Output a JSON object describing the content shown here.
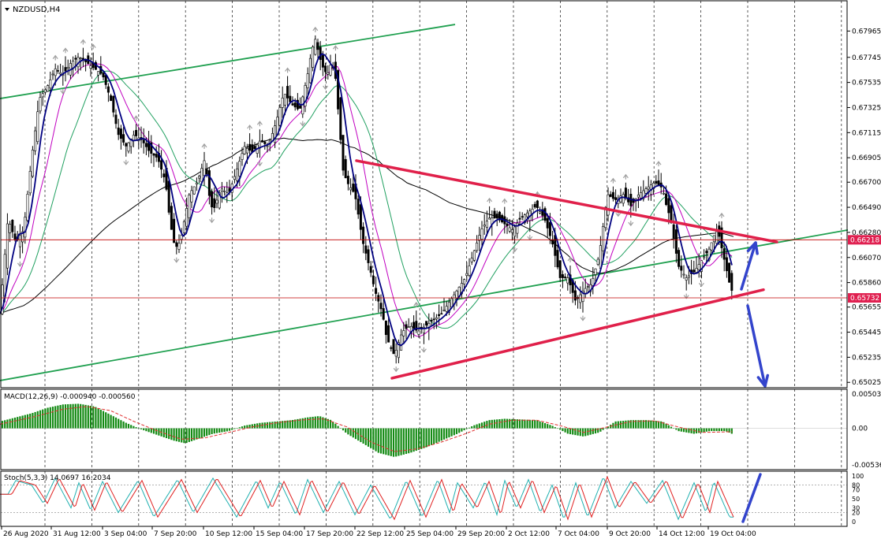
{
  "symbol_title": "NZDUSD,H4",
  "colors": {
    "background": "#ffffff",
    "grid": "#000000",
    "candle": "#000000",
    "ma_fast": "#000080",
    "ma_mid": "#c000c0",
    "ma_slow": "#20a060",
    "ma_long": "#000000",
    "channel": "#20a050",
    "triangle": "#e0204a",
    "level_line": "#c00000",
    "level_label_bg": "#e02050",
    "arrow": "#3344cc",
    "histogram": "#138a13",
    "macd_signal": "#e03030",
    "stoch_main": "#20b0b0",
    "stoch_signal": "#e02020",
    "fractal": "#a0a0a0"
  },
  "chart_data": [
    {
      "type": "candlestick",
      "name": "main",
      "price_ticks": [
        "0.67965",
        "0.67745",
        "0.67535",
        "0.67325",
        "0.67115",
        "0.66905",
        "0.66700",
        "0.66490",
        "0.66280",
        "0.66070",
        "0.65860",
        "0.65655",
        "0.65445",
        "0.65235",
        "0.65025"
      ],
      "ylim": [
        0.6502,
        0.6806
      ],
      "x_labels": [
        "26 Aug 2020",
        "31 Aug 12:00",
        "3 Sep 04:00",
        "7 Sep 20:00",
        "10 Sep 12:00",
        "15 Sep 04:00",
        "17 Sep 20:00",
        "22 Sep 12:00",
        "25 Sep 04:00",
        "29 Sep 20:00",
        "2 Oct 12:00",
        "7 Oct 04:00",
        "9 Oct 20:00",
        "14 Oct 12:00",
        "19 Oct 04:00"
      ],
      "price_path": [
        [
          0,
          0.656
        ],
        [
          10,
          0.664
        ],
        [
          20,
          0.662
        ],
        [
          30,
          0.663
        ],
        [
          40,
          0.669
        ],
        [
          50,
          0.674
        ],
        [
          60,
          0.675
        ],
        [
          70,
          0.6765
        ],
        [
          80,
          0.676
        ],
        [
          90,
          0.677
        ],
        [
          100,
          0.6775
        ],
        [
          110,
          0.677
        ],
        [
          120,
          0.6765
        ],
        [
          130,
          0.676
        ],
        [
          140,
          0.674
        ],
        [
          150,
          0.671
        ],
        [
          160,
          0.67
        ],
        [
          170,
          0.671
        ],
        [
          180,
          0.6705
        ],
        [
          190,
          0.6695
        ],
        [
          200,
          0.669
        ],
        [
          210,
          0.667
        ],
        [
          215,
          0.664
        ],
        [
          220,
          0.662
        ],
        [
          225,
          0.6615
        ],
        [
          230,
          0.6625
        ],
        [
          240,
          0.666
        ],
        [
          250,
          0.667
        ],
        [
          260,
          0.669
        ],
        [
          265,
          0.666
        ],
        [
          270,
          0.6645
        ],
        [
          280,
          0.6665
        ],
        [
          290,
          0.666
        ],
        [
          300,
          0.668
        ],
        [
          310,
          0.67
        ],
        [
          320,
          0.6695
        ],
        [
          330,
          0.6705
        ],
        [
          340,
          0.67
        ],
        [
          350,
          0.672
        ],
        [
          360,
          0.6745
        ],
        [
          370,
          0.6735
        ],
        [
          380,
          0.673
        ],
        [
          390,
          0.676
        ],
        [
          395,
          0.678
        ],
        [
          400,
          0.679
        ],
        [
          405,
          0.6775
        ],
        [
          410,
          0.6765
        ],
        [
          415,
          0.676
        ],
        [
          420,
          0.677
        ],
        [
          425,
          0.676
        ],
        [
          430,
          0.672
        ],
        [
          435,
          0.668
        ],
        [
          440,
          0.667
        ],
        [
          450,
          0.666
        ],
        [
          460,
          0.662
        ],
        [
          470,
          0.6595
        ],
        [
          475,
          0.658
        ],
        [
          480,
          0.657
        ],
        [
          485,
          0.656
        ],
        [
          490,
          0.654
        ],
        [
          500,
          0.6525
        ],
        [
          510,
          0.6545
        ],
        [
          520,
          0.655
        ],
        [
          530,
          0.6545
        ],
        [
          540,
          0.655
        ],
        [
          550,
          0.6555
        ],
        [
          560,
          0.656
        ],
        [
          570,
          0.657
        ],
        [
          580,
          0.658
        ],
        [
          590,
          0.659
        ],
        [
          600,
          0.661
        ],
        [
          610,
          0.663
        ],
        [
          620,
          0.664
        ],
        [
          630,
          0.664
        ],
        [
          640,
          0.6635
        ],
        [
          650,
          0.663
        ],
        [
          660,
          0.664
        ],
        [
          670,
          0.6645
        ],
        [
          680,
          0.665
        ],
        [
          690,
          0.664
        ],
        [
          700,
          0.662
        ],
        [
          710,
          0.659
        ],
        [
          720,
          0.659
        ],
        [
          730,
          0.657
        ],
        [
          740,
          0.658
        ],
        [
          750,
          0.6585
        ],
        [
          760,
          0.661
        ],
        [
          770,
          0.666
        ],
        [
          780,
          0.6655
        ],
        [
          790,
          0.666
        ],
        [
          800,
          0.665
        ],
        [
          810,
          0.666
        ],
        [
          820,
          0.6665
        ],
        [
          830,
          0.667
        ],
        [
          840,
          0.6665
        ],
        [
          845,
          0.665
        ],
        [
          850,
          0.664
        ],
        [
          855,
          0.662
        ],
        [
          860,
          0.66
        ],
        [
          870,
          0.659
        ],
        [
          880,
          0.6595
        ],
        [
          890,
          0.6605
        ],
        [
          900,
          0.6615
        ],
        [
          905,
          0.6625
        ],
        [
          910,
          0.663
        ],
        [
          915,
          0.6615
        ],
        [
          920,
          0.66
        ],
        [
          925,
          0.6585
        ],
        [
          930,
          0.6575
        ]
      ],
      "level_lines": [
        {
          "price": 0.66218,
          "label": "0.66218"
        },
        {
          "price": 0.65732,
          "label": "0.65732"
        }
      ],
      "channel_lines": [
        {
          "name": "upper",
          "points": [
            [
              0,
              0.674
            ],
            [
              577,
              0.6802
            ]
          ]
        },
        {
          "name": "lower",
          "points": [
            [
              0,
              0.6504
            ],
            [
              1075,
              0.663
            ]
          ]
        }
      ],
      "triangle_lines": [
        {
          "name": "resistance",
          "points": [
            [
              452,
              0.6688
            ],
            [
              985,
              0.662
            ]
          ]
        },
        {
          "name": "support",
          "points": [
            [
              497,
              0.6506
            ],
            [
              968,
              0.658
            ]
          ]
        }
      ]
    },
    {
      "type": "bar",
      "name": "macd",
      "title": "MACD(12,26,9) -0.000940 -0.000560",
      "y_ticks": [
        "0.005032",
        "0.00",
        "-0.005364"
      ],
      "ylim": [
        -0.00536,
        0.00503
      ],
      "histogram": [
        [
          0,
          0.001
        ],
        [
          20,
          0.0016
        ],
        [
          40,
          0.0022
        ],
        [
          60,
          0.003
        ],
        [
          80,
          0.0035
        ],
        [
          100,
          0.0036
        ],
        [
          120,
          0.0032
        ],
        [
          140,
          0.002
        ],
        [
          160,
          0.0008
        ],
        [
          180,
          -0.0002
        ],
        [
          200,
          -0.001
        ],
        [
          220,
          -0.0018
        ],
        [
          235,
          -0.0022
        ],
        [
          250,
          -0.0016
        ],
        [
          270,
          -0.0008
        ],
        [
          290,
          -0.0004
        ],
        [
          310,
          0.0004
        ],
        [
          330,
          0.0008
        ],
        [
          350,
          0.001
        ],
        [
          370,
          0.0012
        ],
        [
          390,
          0.0016
        ],
        [
          405,
          0.0018
        ],
        [
          420,
          0.0012
        ],
        [
          440,
          -0.0008
        ],
        [
          460,
          -0.0022
        ],
        [
          480,
          -0.0036
        ],
        [
          500,
          -0.0042
        ],
        [
          520,
          -0.0036
        ],
        [
          540,
          -0.0028
        ],
        [
          560,
          -0.0018
        ],
        [
          580,
          -0.0008
        ],
        [
          600,
          0.0004
        ],
        [
          620,
          0.0012
        ],
        [
          640,
          0.0014
        ],
        [
          660,
          0.0013
        ],
        [
          680,
          0.0012
        ],
        [
          700,
          0.0004
        ],
        [
          720,
          -0.0008
        ],
        [
          740,
          -0.0012
        ],
        [
          760,
          -0.0006
        ],
        [
          780,
          0.001
        ],
        [
          800,
          0.0012
        ],
        [
          820,
          0.0012
        ],
        [
          840,
          0.001
        ],
        [
          860,
          -0.0004
        ],
        [
          880,
          -0.0008
        ],
        [
          900,
          -0.0004
        ],
        [
          920,
          -0.0004
        ],
        [
          930,
          -0.0009
        ]
      ],
      "signal": [
        [
          0,
          0.0006
        ],
        [
          40,
          0.0016
        ],
        [
          80,
          0.0028
        ],
        [
          110,
          0.0032
        ],
        [
          140,
          0.0026
        ],
        [
          170,
          0.001
        ],
        [
          200,
          -0.0004
        ],
        [
          230,
          -0.0016
        ],
        [
          260,
          -0.0014
        ],
        [
          290,
          -0.0006
        ],
        [
          320,
          0.0002
        ],
        [
          350,
          0.0008
        ],
        [
          380,
          0.0012
        ],
        [
          410,
          0.0014
        ],
        [
          440,
          0.0002
        ],
        [
          470,
          -0.002
        ],
        [
          500,
          -0.0034
        ],
        [
          530,
          -0.003
        ],
        [
          560,
          -0.002
        ],
        [
          590,
          -0.0008
        ],
        [
          620,
          0.0006
        ],
        [
          650,
          0.0012
        ],
        [
          680,
          0.0012
        ],
        [
          710,
          0.0004
        ],
        [
          740,
          -0.0006
        ],
        [
          770,
          0.0002
        ],
        [
          800,
          0.001
        ],
        [
          830,
          0.0011
        ],
        [
          860,
          0.0002
        ],
        [
          890,
          -0.0006
        ],
        [
          930,
          -0.0005
        ]
      ]
    },
    {
      "type": "line",
      "name": "stochastic",
      "title": "Stoch(5,3,3) 14.0697 16.2034",
      "y_ticks": [
        "100",
        "80",
        "70",
        "50",
        "30",
        "20",
        "0"
      ],
      "ylim": [
        0,
        100
      ],
      "levels": [
        20,
        80
      ],
      "oscillation_peaks": [
        [
          20,
          90
        ],
        [
          40,
          80
        ],
        [
          70,
          95
        ],
        [
          100,
          85
        ],
        [
          130,
          88
        ],
        [
          175,
          90
        ],
        [
          225,
          92
        ],
        [
          270,
          95
        ],
        [
          325,
          90
        ],
        [
          355,
          88
        ],
        [
          390,
          92
        ],
        [
          430,
          88
        ],
        [
          470,
          80
        ],
        [
          515,
          90
        ],
        [
          555,
          92
        ],
        [
          580,
          85
        ],
        [
          615,
          88
        ],
        [
          640,
          90
        ],
        [
          670,
          92
        ],
        [
          700,
          80
        ],
        [
          730,
          85
        ],
        [
          765,
          98
        ],
        [
          800,
          88
        ],
        [
          840,
          90
        ],
        [
          880,
          85
        ],
        [
          905,
          88
        ]
      ],
      "oscillation_troughs": [
        [
          10,
          60
        ],
        [
          55,
          40
        ],
        [
          90,
          30
        ],
        [
          115,
          25
        ],
        [
          150,
          20
        ],
        [
          195,
          10
        ],
        [
          245,
          20
        ],
        [
          300,
          10
        ],
        [
          340,
          30
        ],
        [
          375,
          15
        ],
        [
          410,
          20
        ],
        [
          450,
          15
        ],
        [
          495,
          5
        ],
        [
          535,
          10
        ],
        [
          570,
          20
        ],
        [
          600,
          30
        ],
        [
          630,
          15
        ],
        [
          655,
          30
        ],
        [
          685,
          20
        ],
        [
          715,
          5
        ],
        [
          745,
          10
        ],
        [
          780,
          30
        ],
        [
          820,
          40
        ],
        [
          860,
          5
        ],
        [
          895,
          20
        ],
        [
          925,
          10
        ]
      ]
    }
  ]
}
